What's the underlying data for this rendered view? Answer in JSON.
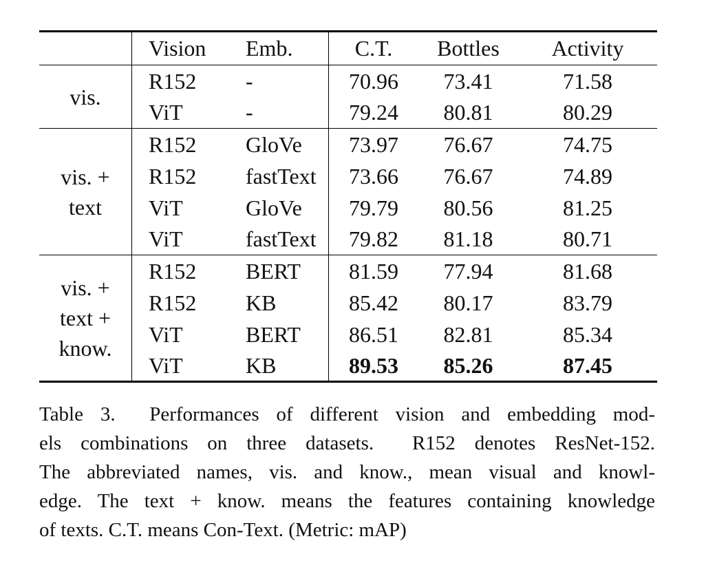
{
  "table": {
    "columns": [
      "Vision",
      "Emb.",
      "C.T.",
      "Bottles",
      "Activity"
    ],
    "groups": [
      {
        "label": [
          "vis."
        ],
        "rows": [
          [
            "R152",
            "-",
            "70.96",
            "73.41",
            "71.58"
          ],
          [
            "ViT",
            "-",
            "79.24",
            "80.81",
            "80.29"
          ]
        ]
      },
      {
        "label": [
          "vis. +",
          "text"
        ],
        "rows": [
          [
            "R152",
            "GloVe",
            "73.97",
            "76.67",
            "74.75"
          ],
          [
            "R152",
            "fastText",
            "73.66",
            "76.67",
            "74.89"
          ],
          [
            "ViT",
            "GloVe",
            "79.79",
            "80.56",
            "81.25"
          ],
          [
            "ViT",
            "fastText",
            "79.82",
            "81.18",
            "80.71"
          ]
        ]
      },
      {
        "label": [
          "vis. +",
          "text +",
          "know."
        ],
        "rows": [
          [
            "R152",
            "BERT",
            "81.59",
            "77.94",
            "81.68"
          ],
          [
            "R152",
            "KB",
            "85.42",
            "80.17",
            "83.79"
          ],
          [
            "ViT",
            "BERT",
            "86.51",
            "82.81",
            "85.34"
          ],
          [
            "ViT",
            "KB",
            "89.53",
            "85.26",
            "87.45"
          ]
        ]
      }
    ]
  },
  "caption": [
    "Table 3.  Performances of different vision and embedding mod-",
    "els combinations on three datasets.  R152 denotes ResNet-152.",
    "The abbreviated names, vis. and know., mean visual and knowl-",
    "edge. The text + know. means the features containing knowledge",
    "of texts. C.T. means Con-Text. (Metric: mAP)"
  ]
}
